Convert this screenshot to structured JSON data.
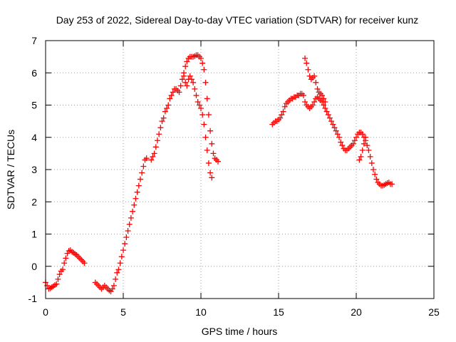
{
  "chart_data": {
    "type": "scatter",
    "title": "Day 253 of 2022, Sidereal Day-to-day VTEC variation (SDTVAR) for receiver kunz",
    "xlabel": "GPS time / hours",
    "ylabel": "SDTVAR / TECUs",
    "xlim": [
      0,
      25
    ],
    "ylim": [
      -1,
      7
    ],
    "xticks": [
      0,
      5,
      10,
      15,
      20,
      25
    ],
    "yticks": [
      -1,
      0,
      1,
      2,
      3,
      4,
      5,
      6,
      7
    ],
    "grid": true,
    "marker": "+",
    "color": "#ff0000",
    "series": [
      {
        "x": [
          0.0,
          0.1,
          0.2,
          0.3,
          0.4,
          0.5,
          0.6,
          0.7,
          0.8,
          0.9,
          1.0,
          1.1,
          1.2,
          1.3,
          1.4,
          1.5,
          1.6,
          1.7,
          1.8,
          1.9,
          2.0,
          2.1,
          2.2,
          2.3,
          2.4,
          2.5
        ],
        "y": [
          -0.5,
          -0.6,
          -0.7,
          -0.68,
          -0.65,
          -0.62,
          -0.58,
          -0.55,
          -0.4,
          -0.25,
          -0.15,
          -0.1,
          0.1,
          0.25,
          0.4,
          0.48,
          0.5,
          0.45,
          0.42,
          0.38,
          0.35,
          0.3,
          0.25,
          0.2,
          0.15,
          0.1
        ]
      },
      {
        "x": [
          3.2,
          3.3,
          3.4,
          3.5,
          3.6,
          3.7,
          3.8,
          3.9,
          4.0,
          4.1,
          4.2,
          4.3,
          4.4,
          4.5,
          4.6,
          4.7,
          4.8,
          4.9,
          5.0,
          5.1,
          5.2,
          5.3,
          5.4,
          5.5,
          5.6,
          5.7,
          5.8,
          5.9,
          6.0,
          6.1,
          6.2,
          6.3,
          6.4,
          6.5
        ],
        "y": [
          -0.5,
          -0.55,
          -0.6,
          -0.65,
          -0.7,
          -0.65,
          -0.6,
          -0.65,
          -0.7,
          -0.75,
          -0.78,
          -0.7,
          -0.6,
          -0.4,
          -0.2,
          -0.1,
          0.1,
          0.3,
          0.5,
          0.7,
          0.9,
          1.1,
          1.3,
          1.5,
          1.7,
          1.9,
          2.1,
          2.3,
          2.5,
          2.7,
          2.9,
          3.1,
          3.3,
          3.35
        ]
      },
      {
        "x": [
          6.8,
          6.9,
          7.0,
          7.1,
          7.2,
          7.3,
          7.4,
          7.5,
          7.6,
          7.7,
          7.8,
          7.9,
          8.0,
          8.1,
          8.2,
          8.3,
          8.4,
          8.5,
          8.6,
          8.7,
          8.8,
          8.9,
          9.0,
          9.1,
          9.2,
          9.3,
          9.4,
          9.5,
          9.6,
          9.7,
          9.8,
          9.9,
          10.0,
          10.1,
          10.2,
          10.3,
          10.4,
          10.5,
          10.6,
          10.7
        ],
        "y": [
          3.3,
          3.4,
          3.5,
          3.7,
          3.9,
          4.1,
          4.3,
          4.5,
          4.6,
          4.8,
          4.9,
          5.0,
          5.2,
          5.3,
          5.4,
          5.5,
          5.5,
          5.45,
          5.4,
          5.6,
          5.8,
          5.9,
          5.7,
          5.6,
          5.8,
          5.9,
          5.8,
          5.7,
          5.5,
          5.3,
          5.1,
          5.0,
          4.9,
          4.7,
          4.4,
          4.0,
          3.6,
          3.2,
          2.9,
          2.75
        ]
      },
      {
        "x": [
          8.9,
          9.0,
          9.1,
          9.2,
          9.3,
          9.4,
          9.5,
          9.6,
          9.7,
          9.8,
          9.9,
          10.0,
          10.1,
          10.2,
          10.3,
          10.4,
          10.5,
          10.6,
          10.7,
          10.8,
          10.9,
          11.0,
          11.1
        ],
        "y": [
          6.0,
          6.2,
          6.35,
          6.45,
          6.5,
          6.5,
          6.5,
          6.52,
          6.55,
          6.55,
          6.5,
          6.45,
          6.3,
          6.1,
          5.7,
          5.2,
          4.7,
          4.2,
          3.8,
          3.5,
          3.35,
          3.3,
          3.25
        ]
      },
      {
        "x": [
          14.6,
          14.7,
          14.8,
          14.9,
          15.0,
          15.1,
          15.2,
          15.3,
          15.4,
          15.5,
          15.6,
          15.7,
          15.8,
          15.9,
          16.0,
          16.1,
          16.2,
          16.3,
          16.4,
          16.5,
          16.6,
          16.7,
          16.8,
          16.9,
          17.0,
          17.1,
          17.2,
          17.3,
          17.4,
          17.5,
          17.6,
          17.7,
          17.8,
          17.9,
          18.0,
          18.1,
          18.2,
          18.3,
          18.4,
          18.5,
          18.6,
          18.7,
          18.8,
          18.9,
          19.0,
          19.1,
          19.2,
          19.3,
          19.4,
          19.5,
          19.6,
          19.7,
          19.8,
          19.9,
          20.0,
          20.1,
          20.2,
          20.3,
          20.4,
          20.5,
          20.6,
          20.7,
          20.8,
          20.9,
          21.0,
          21.1,
          21.2,
          21.3,
          21.4,
          21.5,
          21.6,
          21.7,
          21.8,
          21.9,
          22.0,
          22.1,
          22.2,
          22.3
        ],
        "y": [
          4.4,
          4.45,
          4.5,
          4.5,
          4.55,
          4.6,
          4.7,
          4.8,
          4.95,
          5.05,
          5.1,
          5.15,
          5.2,
          5.2,
          5.25,
          5.25,
          5.3,
          5.3,
          5.35,
          5.35,
          5.3,
          5.1,
          5.0,
          4.95,
          4.9,
          4.95,
          5.0,
          5.1,
          5.2,
          5.25,
          5.2,
          5.15,
          5.1,
          5.0,
          4.9,
          4.8,
          4.7,
          4.6,
          4.5,
          4.4,
          4.3,
          4.2,
          4.1,
          4.0,
          3.85,
          3.75,
          3.65,
          3.6,
          3.6,
          3.65,
          3.7,
          3.75,
          3.8,
          3.9,
          4.0,
          4.1,
          4.15,
          4.15,
          4.1,
          4.0,
          3.9,
          3.75,
          3.6,
          3.4,
          3.2,
          3.0,
          2.85,
          2.7,
          2.6,
          2.55,
          2.5,
          2.5,
          2.52,
          2.55,
          2.58,
          2.6,
          2.55,
          2.55
        ]
      },
      {
        "x": [
          16.7,
          16.8,
          16.9,
          17.0,
          17.1,
          17.2,
          17.3,
          17.4,
          17.5,
          17.6,
          17.7,
          17.8,
          17.9,
          18.0
        ],
        "y": [
          6.45,
          6.3,
          6.1,
          5.9,
          5.8,
          5.85,
          5.9,
          5.7,
          5.5,
          5.4,
          5.35,
          5.3,
          5.2,
          5.1
        ]
      },
      {
        "x": [
          20.2,
          20.3,
          20.4,
          20.5,
          20.6
        ],
        "y": [
          3.3,
          3.4,
          3.6,
          3.8,
          4.0
        ]
      }
    ]
  }
}
